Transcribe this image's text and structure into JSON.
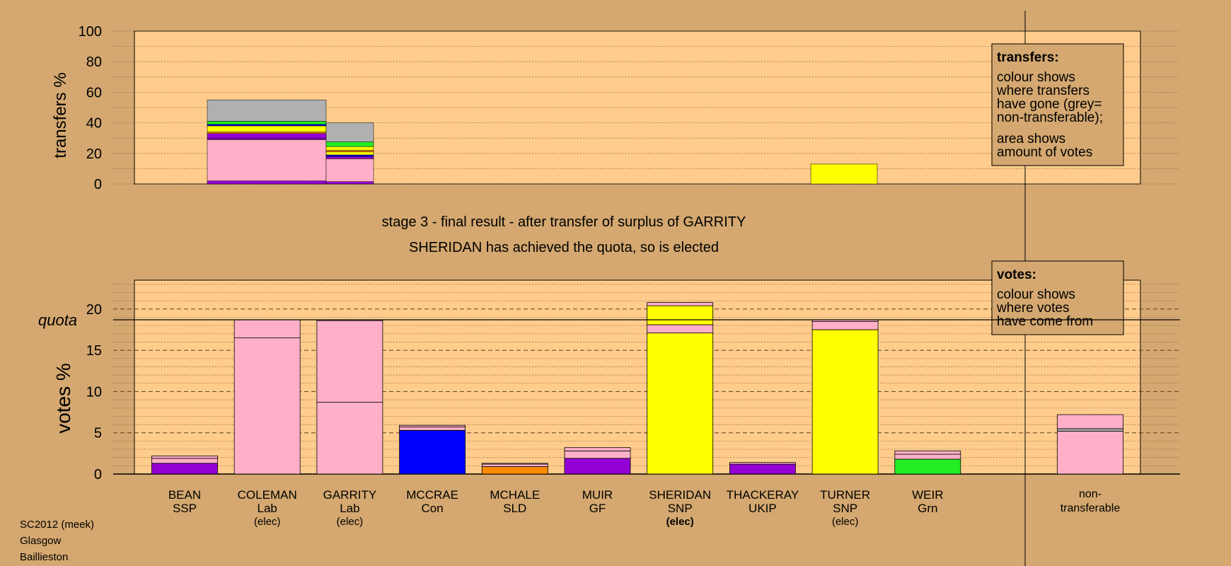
{
  "colors": {
    "page_bg": "#d4a870",
    "plot_bg": "#ffcc8c",
    "SSP": "#9400d3",
    "Lab": "#ffb0c8",
    "Con": "#0000ff",
    "SLD": "#ff8c00",
    "GF": "#9400d3",
    "SNP": "#ffff00",
    "UKIP": "#9400d3",
    "Grn": "#22ee22",
    "nontransferable": "#b0b0b0"
  },
  "stage": {
    "line1": "stage 3 - final result - after transfer of surplus of GARRITY",
    "line2": "SHERIDAN has achieved the quota, so is elected"
  },
  "footer": {
    "line1": "SC2012 (meek)",
    "line2": "Glasgow",
    "line3": "Baillieston"
  },
  "legends": {
    "transfers_title": "transfers:",
    "transfers_lines": [
      "colour shows",
      "where transfers",
      "have gone (grey=",
      "non-transferable);"
    ],
    "transfers_lines2": [
      "area shows",
      "amount of votes"
    ],
    "votes_title": "votes:",
    "votes_lines": [
      "colour shows",
      "where votes",
      "have come from"
    ]
  },
  "chart_data": [
    {
      "type": "bar",
      "name": "transfers",
      "ylabel": "transfers %",
      "ylim": [
        0,
        100
      ],
      "yticks": [
        0,
        20,
        40,
        60,
        80,
        100
      ],
      "columns": [
        {
          "from": "COLEMAN",
          "segments": [
            {
              "party": "SSP",
              "value": 2
            },
            {
              "party": "Lab",
              "value": 27
            },
            {
              "party": "SSP",
              "value": 1
            },
            {
              "party": "UKIP",
              "value": 3
            },
            {
              "party": "SLD",
              "value": 1
            },
            {
              "party": "SNP",
              "value": 4
            },
            {
              "party": "Con",
              "value": 1
            },
            {
              "party": "Grn",
              "value": 2
            },
            {
              "party": "nontransferable",
              "value": 14
            }
          ]
        },
        {
          "from": "GARRITY",
          "segments": [
            {
              "party": "SSP",
              "value": 1.5
            },
            {
              "party": "Lab",
              "value": 15
            },
            {
              "party": "SSP",
              "value": 1.5
            },
            {
              "party": "Con",
              "value": 1
            },
            {
              "party": "SNP",
              "value": 2
            },
            {
              "party": "SLD",
              "value": 1
            },
            {
              "party": "SNP",
              "value": 2.5
            },
            {
              "party": "Grn",
              "value": 3
            },
            {
              "party": "nontransferable",
              "value": 12.5
            }
          ]
        },
        {
          "from": "TURNER",
          "segments": [
            {
              "party": "SNP",
              "value": 13
            }
          ]
        }
      ]
    },
    {
      "type": "bar",
      "name": "votes",
      "ylabel": "votes %",
      "ylim": [
        0,
        23.5
      ],
      "yticks": [
        0,
        5,
        10,
        15,
        20
      ],
      "quota": 18.7,
      "quota_label": "quota",
      "candidates": [
        {
          "name": "BEAN",
          "party": "SSP",
          "note": "",
          "bold": false,
          "segments": [
            {
              "party": "SSP",
              "value": 1.3
            },
            {
              "party": "Lab",
              "value": 0.6
            },
            {
              "party": "Lab",
              "value": 0.3
            }
          ]
        },
        {
          "name": "COLEMAN",
          "party": "Lab",
          "note": "(elec)",
          "bold": false,
          "segments": [
            {
              "party": "Lab",
              "value": 16.5
            },
            {
              "party": "Lab",
              "value": 2.2
            }
          ]
        },
        {
          "name": "GARRITY",
          "party": "Lab",
          "note": "(elec)",
          "bold": false,
          "segments": [
            {
              "party": "Lab",
              "value": 8.7
            },
            {
              "party": "Lab",
              "value": 9.9
            },
            {
              "party": "Lab",
              "value": 0.1
            }
          ]
        },
        {
          "name": "MCCRAE",
          "party": "Con",
          "note": "",
          "bold": false,
          "segments": [
            {
              "party": "Con",
              "value": 5.3
            },
            {
              "party": "Lab",
              "value": 0.4
            },
            {
              "party": "Lab",
              "value": 0.2
            }
          ]
        },
        {
          "name": "MCHALE",
          "party": "SLD",
          "note": "",
          "bold": false,
          "segments": [
            {
              "party": "SLD",
              "value": 0.9
            },
            {
              "party": "Lab",
              "value": 0.3
            },
            {
              "party": "Lab",
              "value": 0.1
            }
          ]
        },
        {
          "name": "MUIR",
          "party": "GF",
          "note": "",
          "bold": false,
          "segments": [
            {
              "party": "GF",
              "value": 1.9
            },
            {
              "party": "Lab",
              "value": 0.9
            },
            {
              "party": "Lab",
              "value": 0.4
            }
          ]
        },
        {
          "name": "SHERIDAN",
          "party": "SNP",
          "note": "(elec)",
          "bold": true,
          "segments": [
            {
              "party": "SNP",
              "value": 17.1
            },
            {
              "party": "Lab",
              "value": 1.0
            },
            {
              "party": "SNP",
              "value": 2.3
            },
            {
              "party": "Lab",
              "value": 0.4
            }
          ]
        },
        {
          "name": "THACKERAY",
          "party": "UKIP",
          "note": "",
          "bold": false,
          "segments": [
            {
              "party": "UKIP",
              "value": 1.2
            },
            {
              "party": "Lab",
              "value": 0.2
            }
          ]
        },
        {
          "name": "TURNER",
          "party": "SNP",
          "note": "(elec)",
          "bold": false,
          "segments": [
            {
              "party": "SNP",
              "value": 17.5
            },
            {
              "party": "Lab",
              "value": 1.0
            },
            {
              "party": "Lab",
              "value": 0.2
            }
          ]
        },
        {
          "name": "WEIR",
          "party": "Grn",
          "note": "",
          "bold": false,
          "segments": [
            {
              "party": "Grn",
              "value": 1.8
            },
            {
              "party": "Lab",
              "value": 0.6
            },
            {
              "party": "Lab",
              "value": 0.4
            }
          ]
        }
      ],
      "nontransferable": {
        "label_line1": "non-",
        "label_line2": "transferable",
        "segments": [
          {
            "party": "Lab",
            "value": 5.2
          },
          {
            "party": "nontransferable",
            "value": 0.3
          },
          {
            "party": "Lab",
            "value": 1.7
          }
        ]
      }
    }
  ]
}
